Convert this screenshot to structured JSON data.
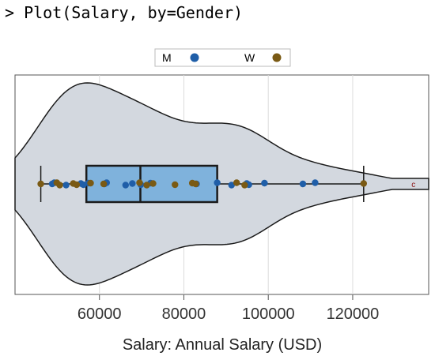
{
  "console": {
    "prompt": ">",
    "command": "Plot(Salary, by=Gender)"
  },
  "chart_data": {
    "type": "violin-box-strip",
    "xlabel": "Salary: Annual Salary (USD)",
    "xlim": [
      40000,
      138000
    ],
    "xticks": [
      60000,
      80000,
      100000,
      120000
    ],
    "xtick_labels": [
      "60000",
      "80000",
      "100000",
      "120000"
    ],
    "grid": true,
    "legend": {
      "position": "top-center"
    },
    "box": {
      "whisker_low": 46100,
      "q1": 56900,
      "median": 69700,
      "q3": 87900,
      "whisker_high": 122600,
      "outlier_label": "c",
      "outlier_value": 134400
    },
    "series": [
      {
        "name": "M",
        "color": "#1f5ea8",
        "values": [
          48800,
          49300,
          52100,
          55600,
          56200,
          57400,
          61200,
          61700,
          66200,
          67800,
          69800,
          72100,
          83000,
          87900,
          91300,
          94900,
          95400,
          99100,
          108200,
          111100
        ]
      },
      {
        "name": "W",
        "color": "#7a5a14",
        "values": [
          46100,
          49900,
          50600,
          53800,
          54600,
          57900,
          61000,
          69500,
          71200,
          72700,
          77900,
          82000,
          82800,
          92500,
          94400,
          122600
        ]
      }
    ],
    "colors": {
      "violin_fill": "#d3d8df",
      "violin_stroke": "#1a1a1a",
      "box_fill": "#7fb2dc",
      "box_stroke": "#1a1a1a",
      "grid": "#dcdcdc",
      "outlier": "#8a1010"
    }
  }
}
